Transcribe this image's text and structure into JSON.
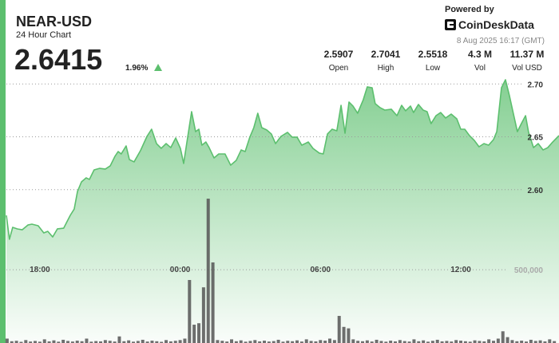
{
  "header": {
    "title": "NEAR-USD",
    "subtitle": "24 Hour Chart",
    "price": "2.6415",
    "change": "1.96%",
    "powered_by": "Powered by",
    "brand": "CoinDeskData",
    "timestamp": "8 Aug 2025 16:17 (GMT)"
  },
  "stats": [
    {
      "value": "2.5907",
      "label": "Open"
    },
    {
      "value": "2.7041",
      "label": "High"
    },
    {
      "value": "2.5518",
      "label": "Low"
    },
    {
      "value": "4.3 M",
      "label": "Vol"
    },
    {
      "value": "11.37 M",
      "label": "Vol USD"
    }
  ],
  "chart_data": [
    {
      "type": "line",
      "color": "#5cbf6e",
      "xlim": [
        16.57,
        40.2
      ],
      "xticks": [
        {
          "value": 18,
          "label": "18:00"
        },
        {
          "value": 24,
          "label": "00:00"
        },
        {
          "value": 30,
          "label": "06:00"
        },
        {
          "value": 36,
          "label": "12:00"
        }
      ],
      "ylim": [
        2.455,
        2.71
      ],
      "yticks": [
        {
          "value": 2.6,
          "label": "2.60"
        },
        2.65,
        {
          "value": 2.7,
          "label": "2.70"
        }
      ],
      "grid": true,
      "x": [
        16.57,
        16.7,
        16.84,
        17.04,
        17.25,
        17.49,
        17.66,
        17.93,
        18.17,
        18.34,
        18.55,
        18.75,
        19.02,
        19.3,
        19.47,
        19.61,
        19.78,
        19.98,
        20.12,
        20.32,
        20.56,
        20.8,
        21.01,
        21.21,
        21.35,
        21.48,
        21.69,
        21.83,
        22.03,
        22.3,
        22.58,
        22.78,
        22.99,
        23.19,
        23.4,
        23.6,
        23.81,
        24.01,
        24.15,
        24.28,
        24.49,
        24.66,
        24.8,
        24.93,
        25.1,
        25.24,
        25.45,
        25.65,
        25.92,
        26.16,
        26.4,
        26.61,
        26.78,
        26.98,
        27.15,
        27.32,
        27.49,
        27.7,
        27.9,
        28.08,
        28.31,
        28.59,
        28.79,
        29,
        29.2,
        29.48,
        29.68,
        29.95,
        30.12,
        30.3,
        30.5,
        30.7,
        30.88,
        31.05,
        31.22,
        31.39,
        31.59,
        31.83,
        32,
        32.21,
        32.34,
        32.55,
        32.75,
        33.03,
        33.27,
        33.47,
        33.64,
        33.85,
        33.98,
        34.19,
        34.39,
        34.56,
        34.73,
        34.94,
        35.14,
        35.35,
        35.59,
        35.83,
        36,
        36.17,
        36.37,
        36.58,
        36.78,
        36.99,
        37.19,
        37.4,
        37.54,
        37.74,
        37.91,
        38.08,
        38.29,
        38.42,
        38.59,
        38.77,
        38.9,
        39.11,
        39.31,
        39.52,
        39.72,
        39.93,
        40.2
      ],
      "values": [
        2.5757,
        2.5531,
        2.5644,
        2.5629,
        2.5621,
        2.5666,
        2.5674,
        2.5659,
        2.5591,
        2.5606,
        2.5553,
        2.5629,
        2.5636,
        2.5757,
        2.5817,
        2.5983,
        2.6074,
        2.6112,
        2.6097,
        2.6187,
        2.6202,
        2.6195,
        2.6225,
        2.6315,
        2.6361,
        2.6338,
        2.6414,
        2.6285,
        2.6263,
        2.6368,
        2.6504,
        2.6572,
        2.6436,
        2.6391,
        2.6436,
        2.6398,
        2.6489,
        2.6391,
        2.6248,
        2.6436,
        2.6738,
        2.6549,
        2.6572,
        2.6421,
        2.6451,
        2.6398,
        2.63,
        2.6338,
        2.6338,
        2.6232,
        2.6278,
        2.6376,
        2.6361,
        2.6497,
        2.6587,
        2.6723,
        2.6587,
        2.6565,
        2.6527,
        2.6436,
        2.6504,
        2.6542,
        2.6497,
        2.6497,
        2.6421,
        2.6451,
        2.6391,
        2.6346,
        2.6338,
        2.6527,
        2.6572,
        2.6557,
        2.6798,
        2.6534,
        2.6829,
        2.6791,
        2.6723,
        2.6851,
        2.6972,
        2.6964,
        2.6814,
        2.6776,
        2.6753,
        2.6761,
        2.67,
        2.6798,
        2.6746,
        2.6791,
        2.673,
        2.6806,
        2.6753,
        2.6738,
        2.6625,
        2.67,
        2.673,
        2.6678,
        2.6715,
        2.667,
        2.6572,
        2.6572,
        2.6512,
        2.6466,
        2.6406,
        2.6436,
        2.6421,
        2.6474,
        2.6549,
        2.6964,
        2.704,
        2.6889,
        2.6678,
        2.6549,
        2.6625,
        2.67,
        2.6542,
        2.6398,
        2.6436,
        2.6376,
        2.6398,
        2.6451,
        2.6512
      ]
    },
    {
      "type": "bar",
      "color": "#555555",
      "xlim": [
        16.57,
        40.2
      ],
      "ylim": [
        0,
        1840000
      ],
      "yticks": [
        {
          "value": 500000,
          "label": "500,000"
        }
      ],
      "x": [
        16.6,
        16.8,
        17,
        17.2,
        17.4,
        17.6,
        17.8,
        18,
        18.2,
        18.4,
        18.6,
        18.8,
        19,
        19.2,
        19.4,
        19.6,
        19.8,
        20,
        20.2,
        20.4,
        20.6,
        20.8,
        21,
        21.2,
        21.4,
        21.6,
        21.8,
        22,
        22.2,
        22.4,
        22.6,
        22.8,
        23,
        23.2,
        23.4,
        23.6,
        23.8,
        24,
        24.2,
        24.4,
        24.6,
        24.8,
        25,
        25.2,
        25.4,
        25.6,
        25.8,
        26,
        26.2,
        26.4,
        26.6,
        26.8,
        27,
        27.2,
        27.4,
        27.6,
        27.8,
        28,
        28.2,
        28.4,
        28.6,
        28.8,
        29,
        29.2,
        29.4,
        29.6,
        29.8,
        30,
        30.2,
        30.4,
        30.6,
        30.8,
        31,
        31.2,
        31.4,
        31.6,
        31.8,
        32,
        32.2,
        32.4,
        32.6,
        32.8,
        33,
        33.2,
        33.4,
        33.6,
        33.8,
        34,
        34.2,
        34.4,
        34.6,
        34.8,
        35,
        35.2,
        35.4,
        35.6,
        35.8,
        36,
        36.2,
        36.4,
        36.6,
        36.8,
        37,
        37.2,
        37.4,
        37.6,
        37.8,
        38,
        38.2,
        38.4,
        38.6,
        38.8,
        39,
        39.2,
        39.4,
        39.6,
        39.8,
        40
      ],
      "values": [
        30000,
        12000,
        15000,
        8000,
        20000,
        10000,
        14000,
        9000,
        25000,
        11000,
        18000,
        9000,
        22000,
        14000,
        10000,
        16000,
        12000,
        30000,
        9000,
        13000,
        11000,
        20000,
        15000,
        10000,
        45000,
        12000,
        18000,
        9000,
        14000,
        22000,
        10000,
        16000,
        12000,
        8000,
        20000,
        11000,
        15000,
        20000,
        30000,
        430000,
        125000,
        135000,
        380000,
        985000,
        550000,
        20000,
        15000,
        10000,
        25000,
        12000,
        18000,
        9000,
        14000,
        20000,
        11000,
        16000,
        10000,
        13000,
        22000,
        9000,
        15000,
        12000,
        18000,
        10000,
        25000,
        14000,
        11000,
        20000,
        16000,
        30000,
        20000,
        185000,
        110000,
        100000,
        25000,
        15000,
        12000,
        18000,
        10000,
        22000,
        14000,
        9000,
        16000,
        11000,
        20000,
        13000,
        10000,
        25000,
        12000,
        18000,
        9000,
        15000,
        22000,
        11000,
        14000,
        10000,
        20000,
        16000,
        12000,
        9000,
        18000,
        14000,
        11000,
        25000,
        15000,
        30000,
        80000,
        40000,
        20000,
        12000,
        16000,
        10000,
        22000,
        14000,
        18000,
        11000,
        25000,
        13000
      ]
    }
  ]
}
